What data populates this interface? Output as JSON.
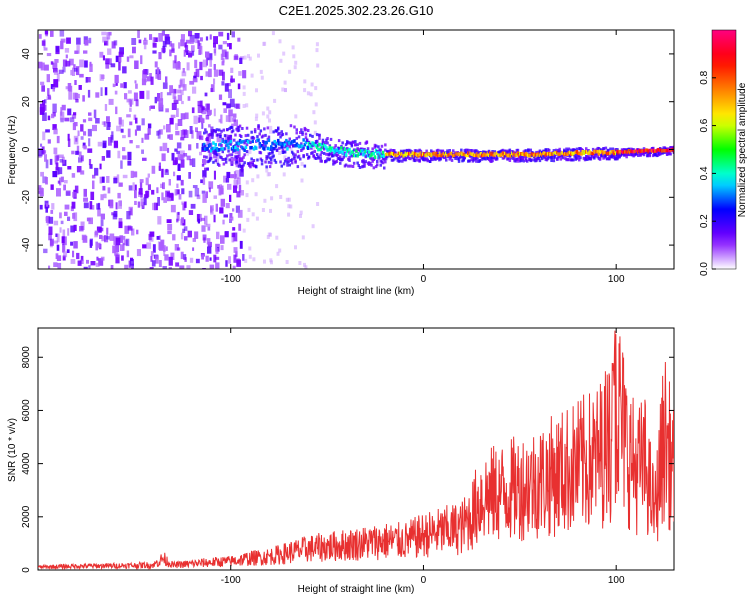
{
  "title": "C2E1.2025.302.23.26.G10",
  "chart_data": [
    {
      "type": "heatmap",
      "xlabel": "Height of straight line (km)",
      "ylabel": "Frequency (Hz)",
      "xlim": [
        -200,
        130
      ],
      "ylim": [
        -50,
        50
      ],
      "x_ticks": [
        -100,
        0,
        100
      ],
      "x_tick_labels": [
        "-100",
        "0",
        "100"
      ],
      "y_ticks": [
        -40,
        -20,
        0,
        20,
        40
      ],
      "y_tick_labels": [
        "-40",
        "-20",
        "0",
        "20",
        "40"
      ],
      "colorbar": {
        "label": "Normalized spectral amplitude",
        "range": [
          0,
          1
        ],
        "ticks": [
          0.0,
          0.2,
          0.4,
          0.6,
          0.8
        ],
        "tick_labels": [
          "0.0",
          "0.2",
          "0.4",
          "0.6",
          "0.8"
        ],
        "colors": [
          "#ffffff",
          "#7a00ff",
          "#0000ff",
          "#00ffff",
          "#00ff00",
          "#ffff00",
          "#ff8000",
          "#ff0000",
          "#ff0080"
        ]
      },
      "regions": [
        {
          "x": [
            -200,
            -94
          ],
          "freq": [
            -50,
            50
          ],
          "amplitude": 0.1,
          "description_type": "broadband noise"
        },
        {
          "x": [
            -115,
            -60
          ],
          "freq": [
            -5,
            6
          ],
          "amplitude": 0.35
        },
        {
          "x": [
            -60,
            -20
          ],
          "freq": [
            -4,
            3
          ],
          "amplitude": 0.45
        },
        {
          "x": [
            -20,
            100
          ],
          "freq": [
            -2,
            1
          ],
          "amplitude": 0.8
        },
        {
          "x": [
            100,
            130
          ],
          "freq": [
            -1,
            1
          ],
          "amplitude": 0.95
        }
      ],
      "ridge": {
        "x": [
          -115,
          -90,
          -60,
          -40,
          -20,
          0,
          50,
          100,
          130
        ],
        "freq": [
          1,
          2,
          2,
          -1,
          -2,
          -2,
          -2,
          -1,
          0
        ]
      }
    },
    {
      "type": "line",
      "xlabel": "Height of straight line (km)",
      "ylabel": "SNR (10 * v/v)",
      "xlim": [
        -200,
        130
      ],
      "ylim": [
        0,
        9100
      ],
      "x_ticks": [
        -100,
        0,
        100
      ],
      "x_tick_labels": [
        "-100",
        "0",
        "100"
      ],
      "y_ticks": [
        0,
        2000,
        4000,
        6000,
        8000
      ],
      "y_tick_labels": [
        "0",
        "2000",
        "4000",
        "6000",
        "8000"
      ],
      "series": [
        {
          "color": "#e83030",
          "x": [
            -200,
            -180,
            -160,
            -140,
            -135,
            -130,
            -110,
            -100,
            -90,
            -80,
            -70,
            -60,
            -50,
            -40,
            -30,
            -20,
            -10,
            0,
            10,
            20,
            25,
            30,
            40,
            50,
            60,
            70,
            80,
            90,
            95,
            98,
            100,
            105,
            110,
            115,
            120,
            125,
            130
          ],
          "y": [
            150,
            200,
            220,
            260,
            600,
            250,
            400,
            450,
            600,
            700,
            900,
            1100,
            1200,
            1300,
            1400,
            1500,
            1500,
            1800,
            2000,
            2200,
            2800,
            3800,
            4000,
            4300,
            4600,
            5000,
            5400,
            5800,
            6500,
            7200,
            9000,
            6500,
            5200,
            5500,
            3000,
            7000,
            5000
          ]
        }
      ]
    }
  ]
}
